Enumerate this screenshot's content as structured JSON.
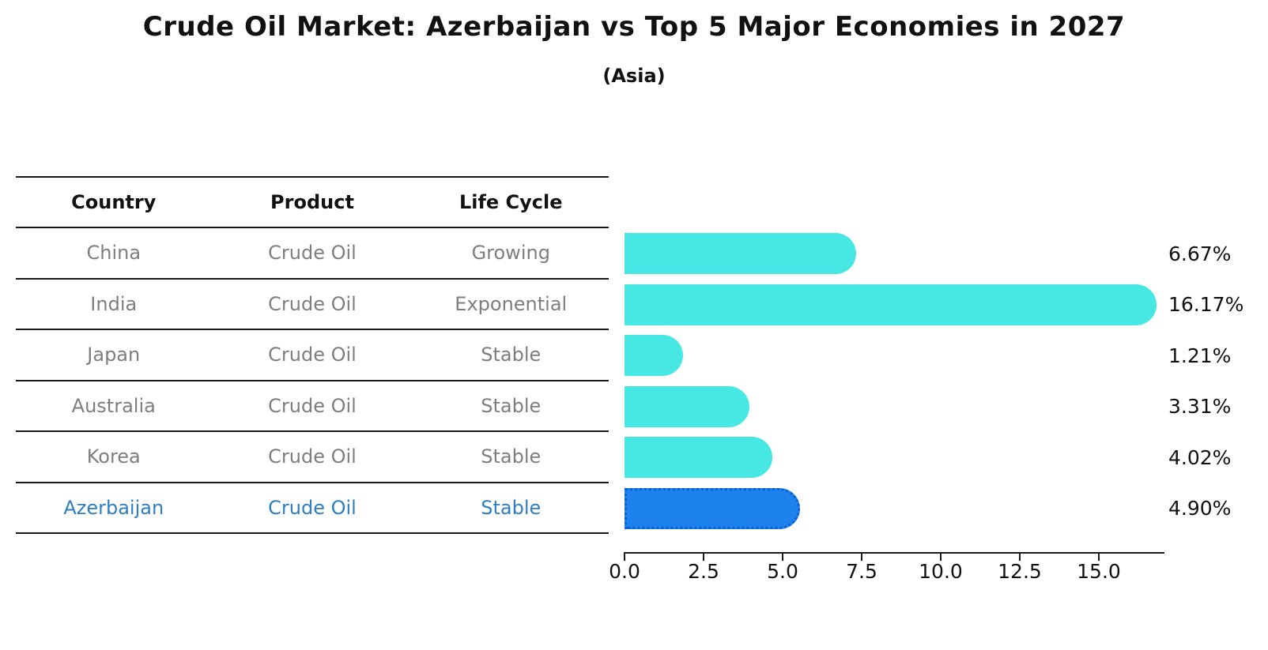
{
  "title": "Crude Oil Market: Azerbaijan vs Top 5 Major Economies in 2027",
  "subtitle": "(Asia)",
  "table": {
    "headers": [
      "Country",
      "Product",
      "Life Cycle"
    ],
    "rows": [
      {
        "country": "China",
        "product": "Crude Oil",
        "life_cycle": "Growing",
        "highlighted": false
      },
      {
        "country": "India",
        "product": "Crude Oil",
        "life_cycle": "Exponential",
        "highlighted": false
      },
      {
        "country": "Japan",
        "product": "Crude Oil",
        "life_cycle": "Stable",
        "highlighted": false
      },
      {
        "country": "Australia",
        "product": "Crude Oil",
        "life_cycle": "Stable",
        "highlighted": false
      },
      {
        "country": "Korea",
        "product": "Crude Oil",
        "life_cycle": "Stable",
        "highlighted": false
      },
      {
        "country": "Azerbaijan",
        "product": "Crude Oil",
        "life_cycle": "Stable",
        "highlighted": true
      }
    ]
  },
  "chart_data": {
    "type": "bar",
    "orientation": "horizontal",
    "title": "Crude Oil Market: Azerbaijan vs Top 5 Major Economies in 2027",
    "subtitle": "(Asia)",
    "categories": [
      "China",
      "India",
      "Japan",
      "Australia",
      "Korea",
      "Azerbaijan"
    ],
    "values": [
      6.67,
      16.17,
      1.21,
      3.31,
      4.02,
      4.9
    ],
    "value_labels": [
      "6.67%",
      "16.17%",
      "1.21%",
      "3.31%",
      "4.02%",
      "4.90%"
    ],
    "highlight_index": 5,
    "xlabel": "",
    "ylabel": "",
    "xlim": [
      0,
      17.05
    ],
    "x_ticks": [
      "0.0",
      "2.5",
      "5.0",
      "7.5",
      "10.0",
      "12.5",
      "15.0"
    ],
    "grid": "off",
    "legend": "none"
  },
  "colors": {
    "bar": "#47E8E4",
    "highlight_bar": "#1E82EE",
    "highlight_border": "#0C5FD4",
    "highlight_text": "#2E7FC1",
    "table_text": "#7e7e7e",
    "axis": "#1a1a1a"
  }
}
